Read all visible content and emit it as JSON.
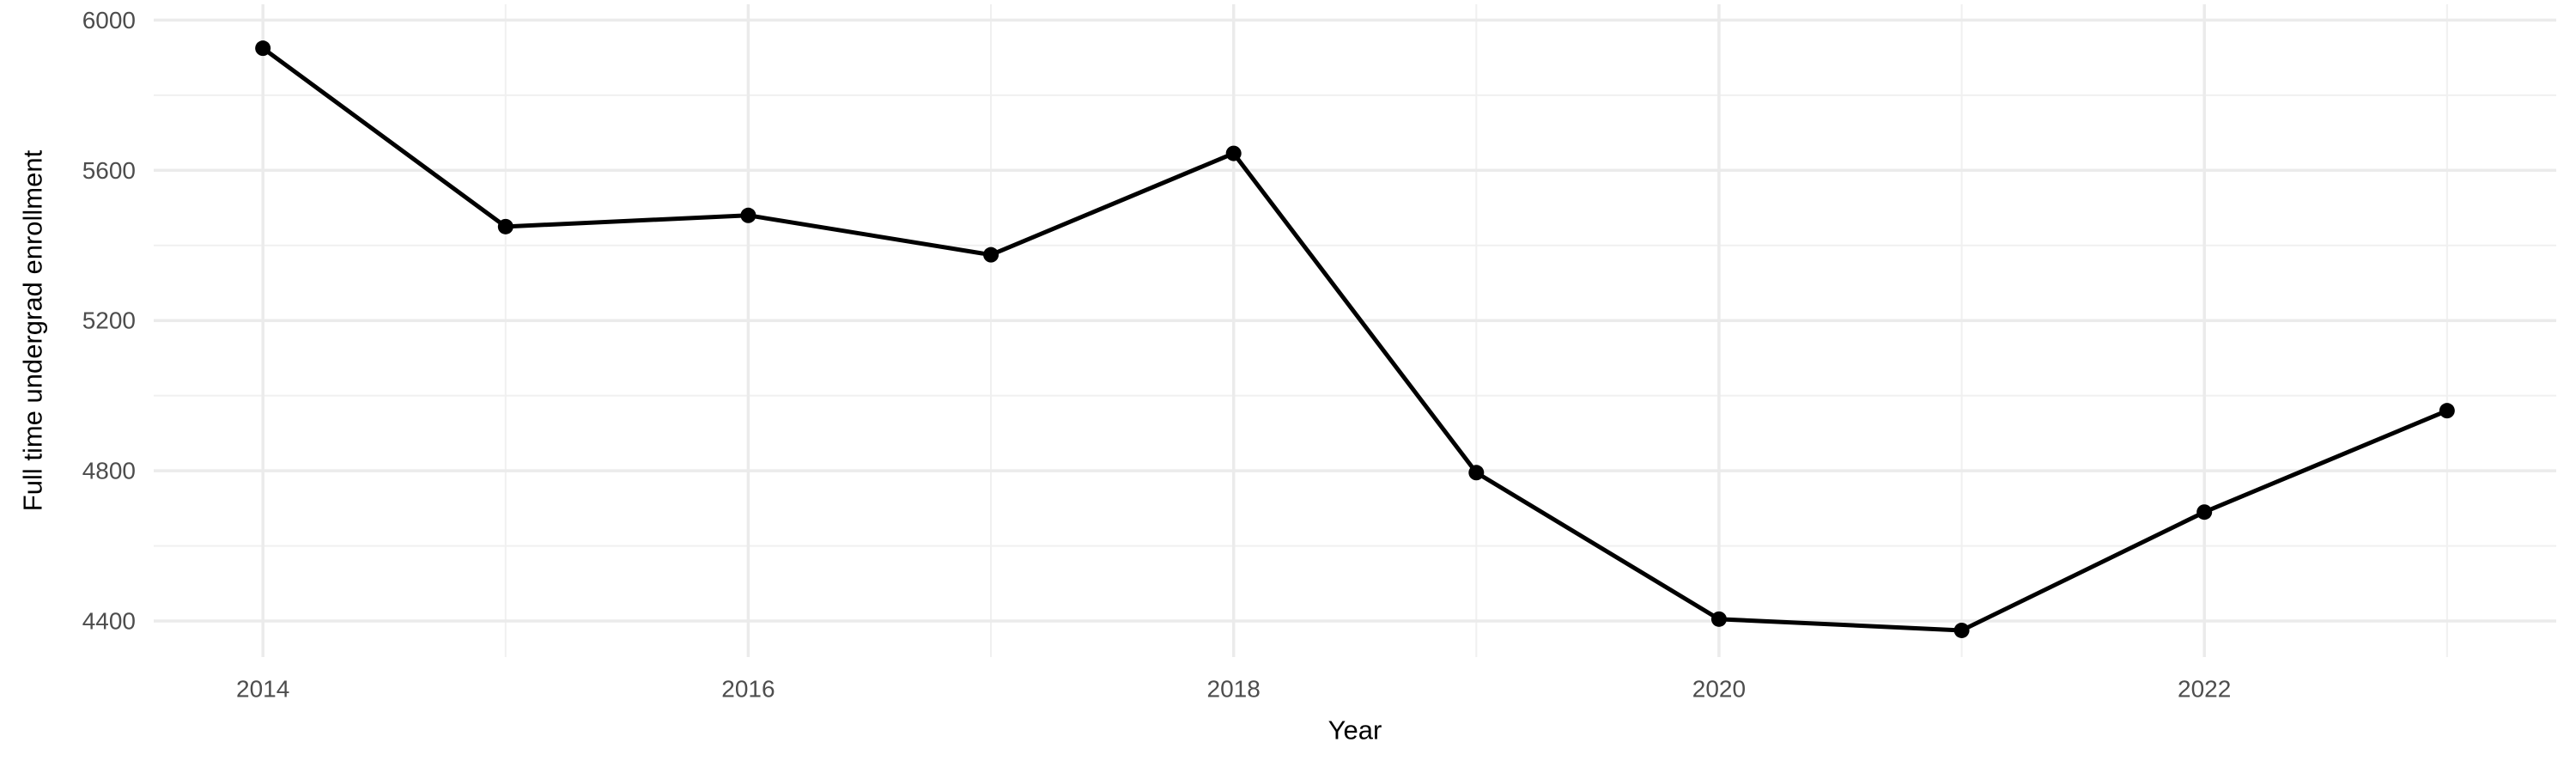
{
  "chart_data": {
    "type": "line",
    "title": "",
    "xlabel": "Year",
    "ylabel": "Full time undergrad enrollment",
    "x": [
      2014,
      2015,
      2016,
      2017,
      2018,
      2019,
      2020,
      2021,
      2022,
      2023
    ],
    "values": [
      5925,
      5450,
      5480,
      5375,
      5645,
      4795,
      4405,
      4375,
      4690,
      4960
    ],
    "x_ticks": [
      2014,
      2016,
      2018,
      2020,
      2022
    ],
    "x_minor_ticks": [
      2015,
      2017,
      2019,
      2021,
      2023
    ],
    "y_ticks": [
      4400,
      4800,
      5200,
      5600,
      6000
    ],
    "y_minor_ticks": [
      4600,
      5000,
      5400,
      5800
    ],
    "xlim": [
      2013.55,
      2023.45
    ],
    "ylim": [
      4304,
      6042
    ],
    "grid": true,
    "legend": false
  },
  "style": {
    "background": "#ffffff",
    "grid_major_color": "#ebebeb",
    "grid_minor_color": "#f0f0f0",
    "tick_label_color": "#4d4d4d",
    "axis_title_color": "#000000",
    "line_color": "#000000",
    "point_color": "#000000"
  }
}
